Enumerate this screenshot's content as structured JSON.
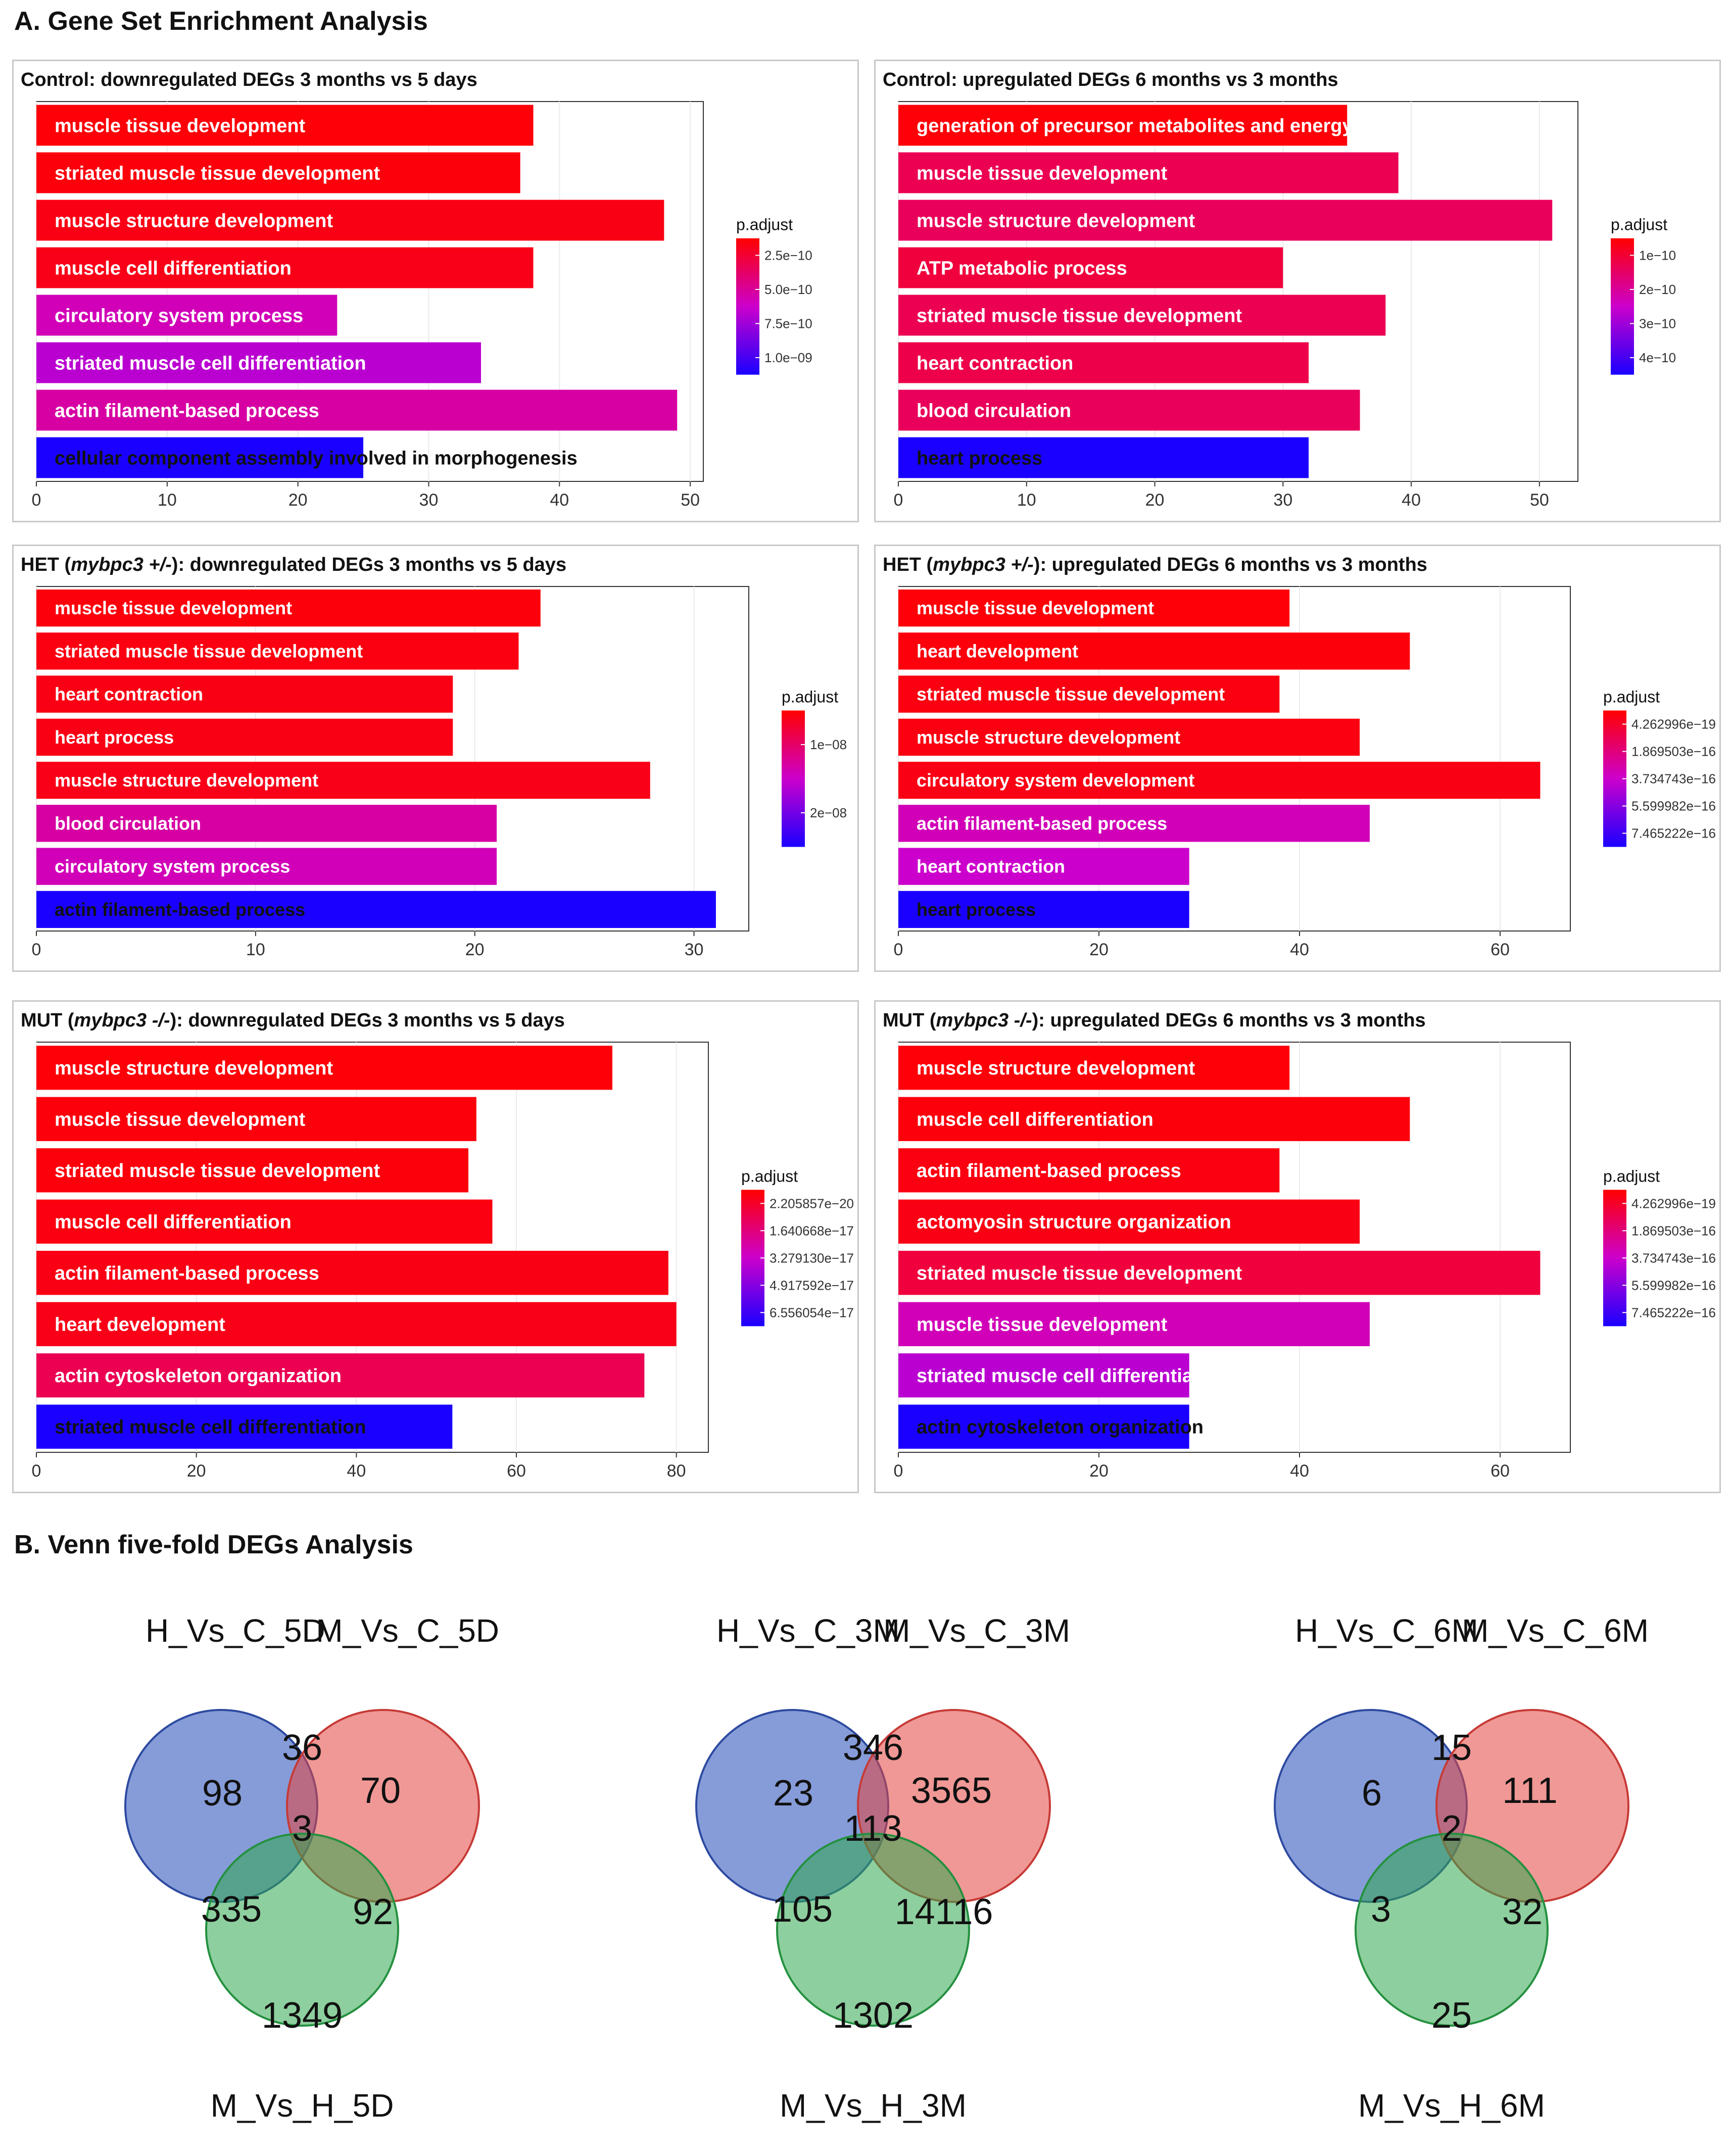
{
  "section_a_title": "A. Gene Set Enrichment Analysis",
  "section_b_title": "B. Venn five-fold DEGs Analysis",
  "colors": {
    "high_sig": "#ff0000",
    "mid_sig": "#cc00cc",
    "low_sig": "#1a00ff"
  },
  "chart_data": [
    {
      "type": "bar",
      "orientation": "horizontal",
      "title": {
        "pre": "Control: downregulated DEGs 3 months vs 5 days",
        "gene": "",
        "post": ""
      },
      "categories": [
        "muscle tissue development",
        "striated muscle tissue development",
        "muscle structure development",
        "muscle cell differentiation",
        "circulatory system process",
        "striated muscle cell differentiation",
        "actin filament-based process",
        "cellular component assembly involved in morphogenesis"
      ],
      "values": [
        38,
        37,
        48,
        38,
        23,
        34,
        49,
        25
      ],
      "color_fraction": [
        0.02,
        0.03,
        0.05,
        0.06,
        0.45,
        0.55,
        0.4,
        1.0
      ],
      "xlim": [
        0,
        51
      ],
      "xticks": [
        0,
        10,
        20,
        30,
        40,
        50
      ],
      "legend_title": "p.adjust",
      "legend_ticks": [
        "2.5e−10",
        "5.0e−10",
        "7.5e−10",
        "1.0e−09"
      ]
    },
    {
      "type": "bar",
      "orientation": "horizontal",
      "title": {
        "pre": "Control: upregulated DEGs 6 months vs 3 months",
        "gene": "",
        "post": ""
      },
      "categories": [
        "generation of precursor metabolites and energy",
        "muscle tissue development",
        "muscle structure development",
        "ATP metabolic process",
        "striated muscle tissue development",
        "heart contraction",
        "blood circulation",
        "heart process"
      ],
      "values": [
        35,
        39,
        51,
        30,
        38,
        32,
        36,
        32
      ],
      "color_fraction": [
        0.02,
        0.2,
        0.22,
        0.15,
        0.2,
        0.18,
        0.22,
        1.0
      ],
      "xlim": [
        0,
        53
      ],
      "xticks": [
        0,
        10,
        20,
        30,
        40,
        50
      ],
      "legend_title": "p.adjust",
      "legend_ticks": [
        "1e−10",
        "2e−10",
        "3e−10",
        "4e−10"
      ]
    },
    {
      "type": "bar",
      "orientation": "horizontal",
      "title": {
        "pre": "HET (",
        "gene": "mybpc3 +/-",
        "post": "): downregulated DEGs 3 months vs 5 days"
      },
      "categories": [
        "muscle tissue development",
        "striated muscle tissue development",
        "heart contraction",
        "heart process",
        "muscle structure development",
        "blood circulation",
        "circulatory system process",
        "actin filament-based process"
      ],
      "values": [
        23,
        22,
        19,
        19,
        28,
        21,
        21,
        31
      ],
      "color_fraction": [
        0.03,
        0.04,
        0.05,
        0.05,
        0.06,
        0.4,
        0.45,
        1.0
      ],
      "xlim": [
        0,
        32.5
      ],
      "xticks": [
        0,
        10,
        20,
        30
      ],
      "legend_title": "p.adjust",
      "legend_ticks": [
        "1e−08",
        "2e−08"
      ]
    },
    {
      "type": "bar",
      "orientation": "horizontal",
      "title": {
        "pre": "HET (",
        "gene": "mybpc3 +/-",
        "post": "): upregulated DEGs 6 months vs 3 months"
      },
      "categories": [
        "muscle tissue development",
        "heart development",
        "striated muscle tissue development",
        "muscle structure development",
        "circulatory system development",
        "actin filament-based process",
        "heart contraction",
        "heart process"
      ],
      "values": [
        39,
        51,
        38,
        46,
        64,
        47,
        29,
        29
      ],
      "color_fraction": [
        0.02,
        0.03,
        0.04,
        0.04,
        0.05,
        0.45,
        0.5,
        1.0
      ],
      "xlim": [
        0,
        67
      ],
      "xticks": [
        0,
        20,
        40,
        60
      ],
      "legend_title": "p.adjust",
      "legend_ticks": [
        "4.262996e−19",
        "1.869503e−16",
        "3.734743e−16",
        "5.599982e−16",
        "7.465222e−16"
      ]
    },
    {
      "type": "bar",
      "orientation": "horizontal",
      "title": {
        "pre": "MUT (",
        "gene": "mybpc3 -/-",
        "post": "): downregulated DEGs 3 months vs 5 days"
      },
      "categories": [
        "muscle structure development",
        "muscle tissue development",
        "striated muscle tissue development",
        "muscle cell differentiation",
        "actin filament-based process",
        "heart development",
        "actin cytoskeleton organization",
        "striated muscle cell differentiation"
      ],
      "values": [
        72,
        55,
        54,
        57,
        79,
        80,
        76,
        52
      ],
      "color_fraction": [
        0.02,
        0.03,
        0.03,
        0.04,
        0.05,
        0.06,
        0.2,
        1.0
      ],
      "xlim": [
        0,
        84
      ],
      "xticks": [
        0,
        20,
        40,
        60,
        80
      ],
      "legend_title": "p.adjust",
      "legend_ticks": [
        "2.205857e−20",
        "1.640668e−17",
        "3.279130e−17",
        "4.917592e−17",
        "6.556054e−17"
      ]
    },
    {
      "type": "bar",
      "orientation": "horizontal",
      "title": {
        "pre": "MUT (",
        "gene": "mybpc3 -/-",
        "post": "): upregulated DEGs 6 months vs 3 months"
      },
      "categories": [
        "muscle structure development",
        "muscle cell differentiation",
        "actin filament-based process",
        "actomyosin structure organization",
        "striated muscle tissue development",
        "muscle tissue development",
        "striated muscle cell differentiation",
        "actin cytoskeleton organization"
      ],
      "values": [
        39,
        51,
        38,
        46,
        64,
        47,
        29,
        29
      ],
      "color_fraction": [
        0.02,
        0.03,
        0.04,
        0.05,
        0.15,
        0.45,
        0.55,
        1.0
      ],
      "xlim": [
        0,
        67
      ],
      "xticks": [
        0,
        20,
        40,
        60
      ],
      "legend_title": "p.adjust",
      "legend_ticks": [
        "4.262996e−19",
        "1.869503e−16",
        "3.734743e−16",
        "5.599982e−16",
        "7.465222e−16"
      ]
    }
  ],
  "venn": [
    {
      "labels": [
        "H_Vs_C_5D",
        "M_Vs_C_5D",
        "M_Vs_H_5D"
      ],
      "counts": {
        "a_only": "98",
        "b_only": "70",
        "c_only": "1349",
        "ab": "36",
        "ac": "335",
        "bc": "92",
        "abc": "3"
      }
    },
    {
      "labels": [
        "H_Vs_C_3M",
        "M_Vs_C_3M",
        "M_Vs_H_3M"
      ],
      "counts": {
        "a_only": "23",
        "b_only": "3565",
        "c_only": "1302",
        "ab": "346",
        "ac": "105",
        "bc": "14116",
        "abc": "113"
      }
    },
    {
      "labels": [
        "H_Vs_C_6M",
        "M_Vs_C_6M",
        "M_Vs_H_6M"
      ],
      "counts": {
        "a_only": "6",
        "b_only": "111",
        "c_only": "25",
        "ab": "15",
        "ac": "3",
        "bc": "32",
        "abc": "2"
      }
    }
  ]
}
